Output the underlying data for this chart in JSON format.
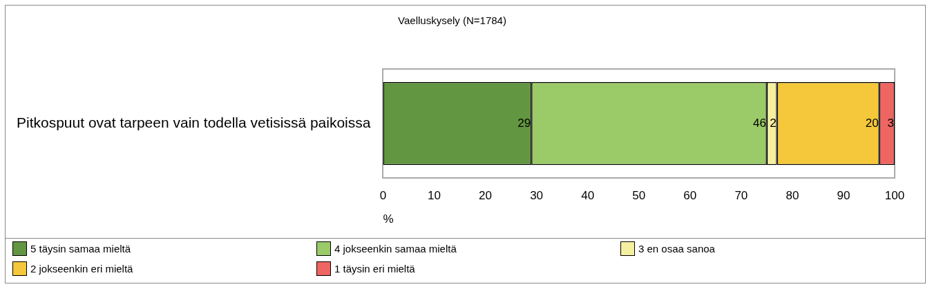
{
  "chart_data": {
    "type": "bar",
    "orientation": "horizontal",
    "stacked": true,
    "title": "Vaelluskysely (N=1784)",
    "xlabel": "%",
    "categories": [
      "Pitkospuut ovat tarpeen vain todella vetisissä paikoissa"
    ],
    "series": [
      {
        "name": "5 täysin samaa mieltä",
        "color": "#629640",
        "values": [
          29
        ]
      },
      {
        "name": "4 jokseenkin samaa mieltä",
        "color": "#9bca68",
        "values": [
          46
        ]
      },
      {
        "name": "3 en osaa sanoa",
        "color": "#f5f0a0",
        "values": [
          2
        ]
      },
      {
        "name": "2 jokseenkin eri mieltä",
        "color": "#f4c83a",
        "values": [
          20
        ]
      },
      {
        "name": "1 täysin eri mieltä",
        "color": "#ef6562",
        "values": [
          3
        ]
      }
    ],
    "xlim": [
      0,
      100
    ],
    "xticks": [
      0,
      10,
      20,
      30,
      40,
      50,
      60,
      70,
      80,
      90,
      100
    ],
    "data_labels": true,
    "legend": "bottom",
    "grid": false
  }
}
